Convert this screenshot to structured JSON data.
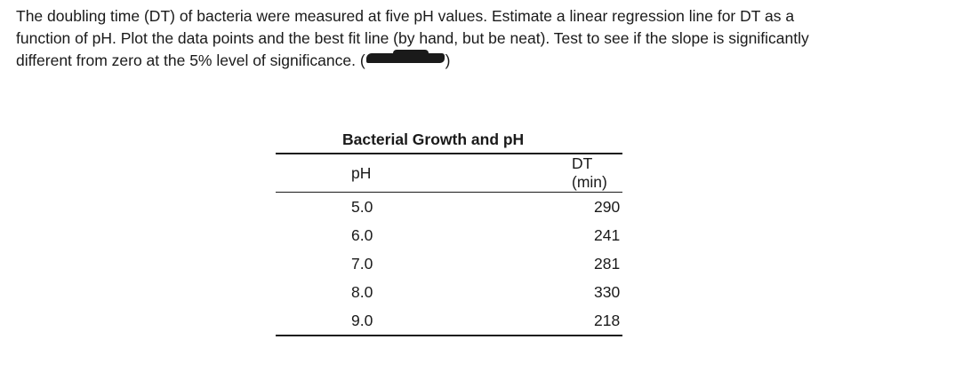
{
  "question": {
    "line1": "The doubling time (DT) of bacteria were measured at five pH values. Estimate a linear regression line for DT as a",
    "line2": "function of pH. Plot the data points and the best fit line (by hand, but be neat). Test to see if the slope is significantly",
    "line3_before": "different from zero at the 5% level of significance. (",
    "line3_after": ")"
  },
  "table": {
    "title": "Bacterial Growth and pH",
    "headers": [
      "pH",
      "DT (min)"
    ],
    "rows": [
      [
        "5.0",
        "290"
      ],
      [
        "6.0",
        "241"
      ],
      [
        "7.0",
        "281"
      ],
      [
        "8.0",
        "330"
      ],
      [
        "9.0",
        "218"
      ]
    ]
  }
}
